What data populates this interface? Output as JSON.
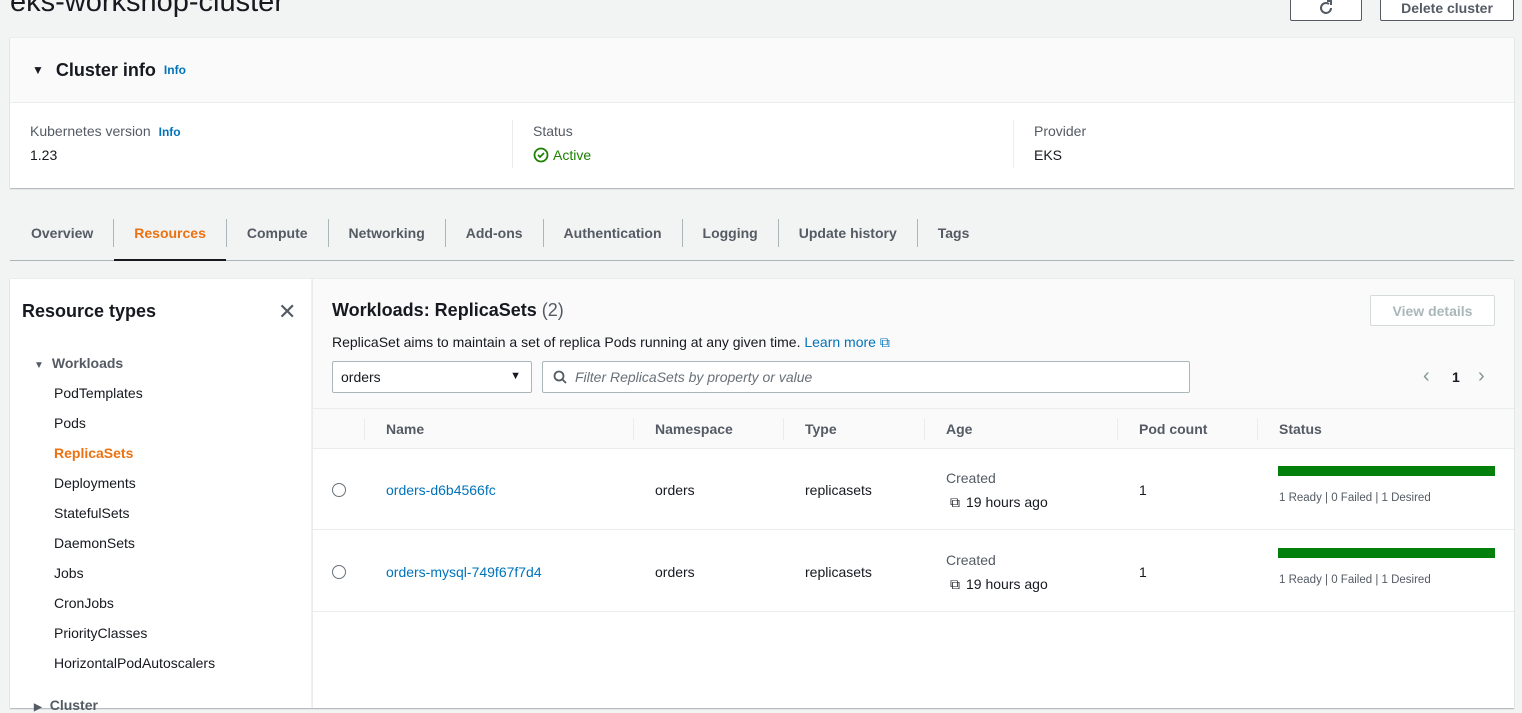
{
  "page": {
    "title": "eks-workshop-cluster",
    "refresh_icon": "refresh-icon",
    "delete_label": "Delete cluster"
  },
  "cluster_info": {
    "heading": "Cluster info",
    "info": "Info",
    "kubernetes_version_label": "Kubernetes version",
    "kubernetes_version_info": "Info",
    "kubernetes_version": "1.23",
    "status_label": "Status",
    "status": "Active",
    "status_color": "#1d8102",
    "provider_label": "Provider",
    "provider": "EKS"
  },
  "tabs": [
    "Overview",
    "Resources",
    "Compute",
    "Networking",
    "Add-ons",
    "Authentication",
    "Logging",
    "Update history",
    "Tags"
  ],
  "active_tab": "Resources",
  "sidebar": {
    "title": "Resource types",
    "group": "Workloads",
    "items": [
      "PodTemplates",
      "Pods",
      "ReplicaSets",
      "Deployments",
      "StatefulSets",
      "DaemonSets",
      "Jobs",
      "CronJobs",
      "PriorityClasses",
      "HorizontalPodAutoscalers"
    ],
    "selected": "ReplicaSets",
    "next_group": "Cluster"
  },
  "main": {
    "title": "Workloads: ReplicaSets",
    "count": "(2)",
    "view_details": "View details",
    "description": "ReplicaSet aims to maintain a set of replica Pods running at any given time.",
    "learn_more": "Learn more",
    "namespace_select": "orders",
    "filter_placeholder": "Filter ReplicaSets by property or value",
    "page": "1",
    "columns": [
      "Name",
      "Namespace",
      "Type",
      "Age",
      "Pod count",
      "Status"
    ],
    "rows": [
      {
        "name": "orders-d6b4566fc",
        "namespace": "orders",
        "type": "replicasets",
        "age_label": "Created",
        "age": "19 hours ago",
        "pod_count": "1",
        "ready_fraction": 1,
        "status": "1 Ready | 0 Failed | 1 Desired"
      },
      {
        "name": "orders-mysql-749f67f7d4",
        "namespace": "orders",
        "type": "replicasets",
        "age_label": "Created",
        "age": "19 hours ago",
        "pod_count": "1",
        "ready_fraction": 1,
        "status": "1 Ready | 0 Failed | 1 Desired"
      }
    ]
  }
}
